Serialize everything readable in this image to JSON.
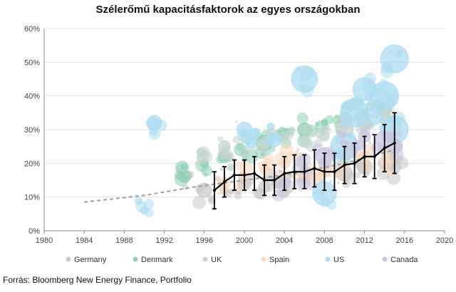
{
  "title": "Szélerőmű kapacitásfaktorok az egyes országokban",
  "source": "Forrás: Bloomberg New Energy Finance, Portfolio",
  "colors": {
    "Germany": "#c9c9c9",
    "Denmark": "#8fcfb4",
    "UK": "#c6d6cf",
    "Spain": "#f7d9bf",
    "US": "#aedcf1",
    "Canada": "#c9c7e0",
    "avg_line": "#000000",
    "trend_line": "#a0a0a0"
  },
  "chart_data": {
    "type": "scatter",
    "title": "Szélerőmű kapacitásfaktorok az egyes országokban",
    "xlim": [
      1980,
      2020
    ],
    "ylim": [
      0,
      60
    ],
    "x_ticks": [
      "1980",
      "1984",
      "1988",
      "1992",
      "1996",
      "2000",
      "2004",
      "2008",
      "2012",
      "2016",
      "2020"
    ],
    "y_ticks": [
      "0%",
      "10%",
      "20%",
      "30%",
      "40%",
      "50%",
      "60%"
    ],
    "grid": "horizontal",
    "legend": [
      "Germany",
      "Denmark",
      "UK",
      "Spain",
      "US",
      "Canada"
    ],
    "legend_position": "bottom",
    "average_series": {
      "x": [
        1997,
        1998,
        1999,
        2000,
        2001,
        2002,
        2003,
        2004,
        2005,
        2006,
        2007,
        2008,
        2009,
        2010,
        2011,
        2012,
        2013,
        2014,
        2015
      ],
      "y": [
        12,
        14.5,
        16.5,
        16.5,
        17,
        15,
        15,
        17,
        17.5,
        17.5,
        18.5,
        17.5,
        17.5,
        19.5,
        20,
        22,
        22,
        24.5,
        26
      ],
      "err": [
        5.5,
        4.5,
        4.5,
        4.5,
        5,
        4.5,
        4.5,
        5,
        5,
        5,
        5.5,
        5.5,
        5.5,
        5.5,
        6,
        6,
        6.5,
        7,
        9
      ]
    },
    "trend_series": {
      "x": [
        1984,
        1990,
        1995,
        2000,
        2005,
        2010,
        2015
      ],
      "y": [
        8.5,
        10.5,
        13,
        15,
        17,
        20,
        24
      ]
    },
    "clusters": [
      {
        "name": "Germany",
        "points": [
          [
            1994,
            16
          ],
          [
            1996,
            12
          ],
          [
            1998,
            12
          ],
          [
            2000,
            14
          ],
          [
            2002,
            13
          ],
          [
            2004,
            15
          ],
          [
            2006,
            16
          ],
          [
            2008,
            17
          ],
          [
            2010,
            17
          ],
          [
            2012,
            19
          ],
          [
            2014,
            20
          ],
          [
            2015,
            19
          ]
        ]
      },
      {
        "name": "Denmark",
        "points": [
          [
            1994,
            19
          ],
          [
            1996,
            20
          ],
          [
            1998,
            22
          ],
          [
            2000,
            23
          ],
          [
            2002,
            26
          ],
          [
            2004,
            29
          ],
          [
            2006,
            30
          ],
          [
            2008,
            32
          ],
          [
            2010,
            33
          ],
          [
            2012,
            35
          ],
          [
            2014,
            36
          ]
        ]
      },
      {
        "name": "UK",
        "points": [
          [
            1996,
            23
          ],
          [
            1998,
            25
          ],
          [
            2000,
            27
          ],
          [
            2002,
            26
          ],
          [
            2004,
            28
          ],
          [
            2006,
            27
          ],
          [
            2008,
            28
          ],
          [
            2010,
            30
          ],
          [
            2012,
            32
          ],
          [
            2014,
            35
          ]
        ]
      },
      {
        "name": "Spain",
        "points": [
          [
            1998,
            14
          ],
          [
            2000,
            16
          ],
          [
            2002,
            18
          ],
          [
            2004,
            20
          ],
          [
            2006,
            19
          ],
          [
            2008,
            18
          ],
          [
            2010,
            20
          ],
          [
            2012,
            22
          ],
          [
            2014,
            21
          ]
        ]
      },
      {
        "name": "US",
        "points": [
          [
            1990,
            6
          ],
          [
            1991,
            32
          ],
          [
            2000,
            30
          ],
          [
            2001,
            29
          ],
          [
            2003,
            27
          ],
          [
            2006,
            45
          ],
          [
            2008,
            11
          ],
          [
            2010,
            25
          ],
          [
            2011,
            35
          ],
          [
            2012,
            42
          ],
          [
            2013,
            34
          ],
          [
            2014,
            40
          ],
          [
            2015,
            51
          ],
          [
            2015,
            30
          ]
        ]
      },
      {
        "name": "Canada",
        "points": [
          [
            2004,
            14
          ],
          [
            2006,
            18
          ],
          [
            2008,
            22
          ],
          [
            2010,
            26
          ],
          [
            2012,
            28
          ],
          [
            2014,
            27
          ],
          [
            2015,
            25
          ]
        ]
      }
    ]
  }
}
